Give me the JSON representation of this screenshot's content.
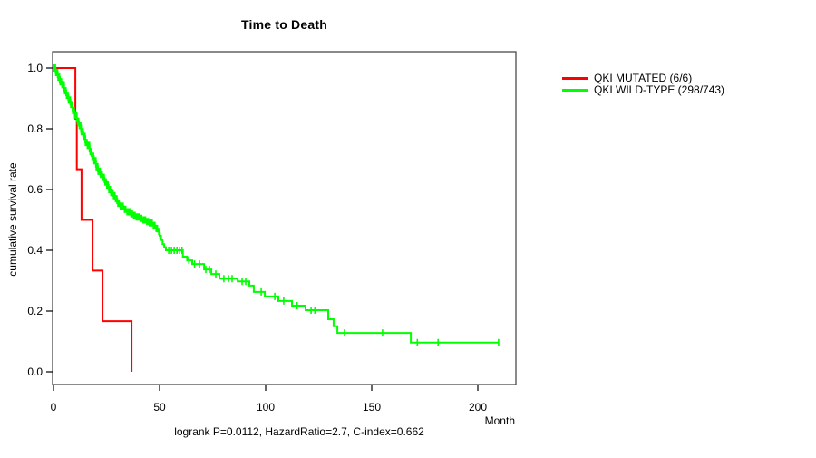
{
  "figure": {
    "title": "Time to Death",
    "xlabel": "Month",
    "ylabel": "cumulative survival rate",
    "caption": "logrank P=0.0112, HazardRatio=2.7, C-index=0.662"
  },
  "chart_data": {
    "type": "line",
    "subtype": "kaplan-meier-step-curves",
    "title": "Time to Death",
    "xlabel": "Month",
    "ylabel": "cumulative survival rate",
    "xlim": [
      0,
      218
    ],
    "ylim": [
      0,
      1.0
    ],
    "x_ticks": [
      0,
      50,
      100,
      150,
      200
    ],
    "x_tick_labels": [
      "0",
      "50",
      "100",
      "150",
      "200"
    ],
    "y_ticks": [
      0.0,
      0.2,
      0.4,
      0.6,
      0.8,
      1.0
    ],
    "y_tick_labels": [
      "0.0",
      "0.2",
      "0.4",
      "0.6",
      "0.8",
      "1.0"
    ],
    "grid": false,
    "legend_position": "outside-top-right",
    "annotation": "logrank P=0.0112, HazardRatio=2.7, C-index=0.662",
    "series": [
      {
        "name": "QKI MUTATED (6/6)",
        "color": "#ff0000",
        "n_events": 6,
        "n_total": 6,
        "steps": [
          [
            0,
            1.0
          ],
          [
            10.3,
            0.833
          ],
          [
            11,
            0.667
          ],
          [
            13.2,
            0.5
          ],
          [
            18.4,
            0.333
          ],
          [
            23.1,
            0.167
          ],
          [
            36.8,
            0.0
          ]
        ],
        "end_month": 36.8,
        "censor_months": [],
        "censor_bands": []
      },
      {
        "name": "QKI WILD-TYPE (298/743)",
        "color": "#00ff00",
        "n_events": 298,
        "n_total": 743,
        "steps": [
          [
            0,
            1.0
          ],
          [
            1,
            0.985
          ],
          [
            2,
            0.97
          ],
          [
            3,
            0.955
          ],
          [
            4,
            0.945
          ],
          [
            5,
            0.925
          ],
          [
            6,
            0.91
          ],
          [
            7,
            0.895
          ],
          [
            8,
            0.88
          ],
          [
            9,
            0.86
          ],
          [
            10,
            0.845
          ],
          [
            11,
            0.825
          ],
          [
            12,
            0.81
          ],
          [
            13,
            0.79
          ],
          [
            14,
            0.775
          ],
          [
            15,
            0.755
          ],
          [
            16,
            0.745
          ],
          [
            17,
            0.725
          ],
          [
            18,
            0.71
          ],
          [
            19,
            0.695
          ],
          [
            20,
            0.675
          ],
          [
            21,
            0.66
          ],
          [
            22,
            0.65
          ],
          [
            23,
            0.64
          ],
          [
            24,
            0.625
          ],
          [
            25,
            0.615
          ],
          [
            26,
            0.6
          ],
          [
            27,
            0.59
          ],
          [
            28,
            0.58
          ],
          [
            29,
            0.57
          ],
          [
            30,
            0.555
          ],
          [
            31.5,
            0.545
          ],
          [
            33,
            0.535
          ],
          [
            34.5,
            0.527
          ],
          [
            36,
            0.52
          ],
          [
            37.5,
            0.515
          ],
          [
            39,
            0.51
          ],
          [
            40.5,
            0.505
          ],
          [
            42,
            0.5
          ],
          [
            43.5,
            0.495
          ],
          [
            45,
            0.49
          ],
          [
            46.5,
            0.482
          ],
          [
            48,
            0.472
          ],
          [
            49,
            0.462
          ],
          [
            50,
            0.448
          ],
          [
            50.7,
            0.434
          ],
          [
            51.4,
            0.42
          ],
          [
            52.2,
            0.41
          ],
          [
            53,
            0.4
          ],
          [
            61,
            0.379
          ],
          [
            63,
            0.367
          ],
          [
            65.4,
            0.355
          ],
          [
            71,
            0.337
          ],
          [
            74.4,
            0.322
          ],
          [
            78.2,
            0.307
          ],
          [
            86.8,
            0.298
          ],
          [
            92.3,
            0.284
          ],
          [
            94.4,
            0.263
          ],
          [
            99.6,
            0.248
          ],
          [
            106,
            0.233
          ],
          [
            112.4,
            0.218
          ],
          [
            118.8,
            0.203
          ],
          [
            129.5,
            0.173
          ],
          [
            132,
            0.15
          ],
          [
            133.8,
            0.128
          ],
          [
            168.4,
            0.096
          ]
        ],
        "end_month": 209.8,
        "censor_months": [
          54.3,
          55.6,
          56.9,
          58.2,
          59.5,
          60.6,
          63.8,
          66.5,
          68.8,
          71.8,
          73.5,
          76.5,
          80.3,
          82.5,
          84.2,
          88.9,
          90.6,
          97.9,
          104.3,
          108.5,
          114.8,
          121.4,
          123.2,
          137.2,
          155.1,
          171.5,
          181.3,
          209.8
        ],
        "censor_bands": [
          {
            "from": 0.4,
            "to": 30,
            "count": 115
          },
          {
            "from": 1.2,
            "to": 22,
            "count": 85
          },
          {
            "from": 30,
            "to": 50,
            "count": 40
          }
        ]
      }
    ]
  }
}
